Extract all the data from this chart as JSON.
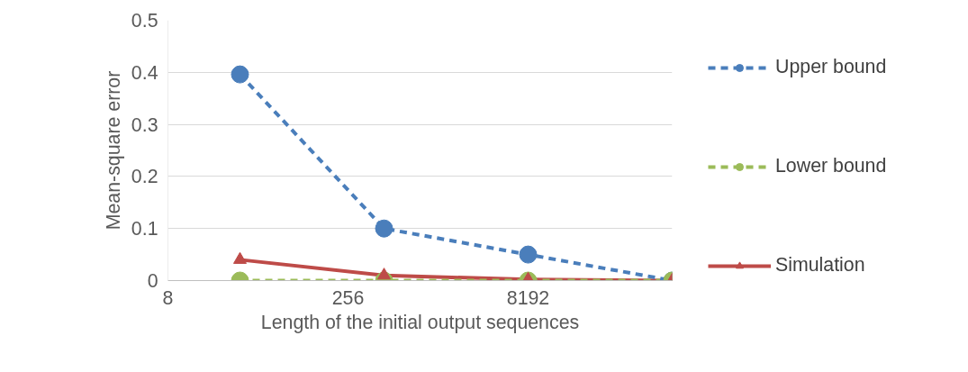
{
  "chart_data": {
    "type": "line",
    "xlabel": "Length of the initial output sequences",
    "ylabel": "Mean-square error",
    "x": [
      32,
      512,
      8192,
      131072
    ],
    "xlim": [
      8,
      131072
    ],
    "xticks": [
      8,
      256,
      8192
    ],
    "log": "x",
    "ylim": [
      0,
      0.5
    ],
    "yticks": [
      0,
      0.1,
      0.2,
      0.3,
      0.4,
      0.5
    ],
    "grid": "y",
    "legend": "right",
    "series": [
      {
        "name": "Upper bound",
        "color": "#4a7ebb",
        "values": [
          0.396,
          0.1,
          0.05,
          0
        ],
        "marker": "circle",
        "line_style": "dashed"
      },
      {
        "name": "Lower bound",
        "color": "#9bbb59",
        "values": [
          0,
          0,
          0,
          0
        ],
        "marker": "circle",
        "line_style": "dashed"
      },
      {
        "name": "Simulation",
        "color": "#be4b48",
        "values": [
          0.04,
          0.01,
          0.002,
          0
        ],
        "marker": "triangle",
        "line_style": "solid"
      }
    ]
  }
}
